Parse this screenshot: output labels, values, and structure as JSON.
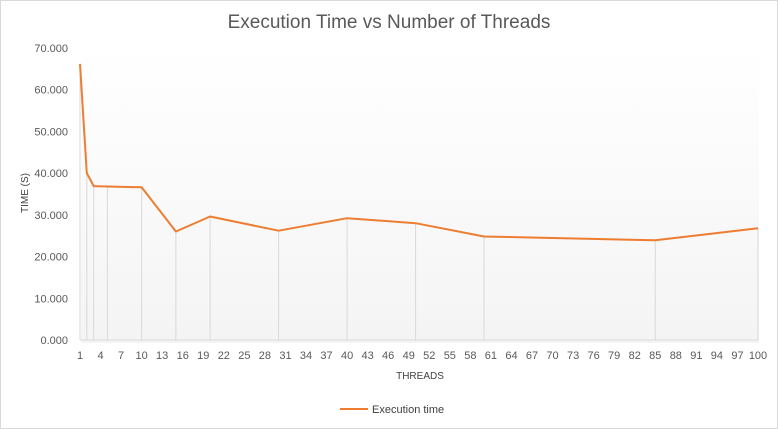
{
  "chart_data": {
    "type": "line",
    "title": "Execution Time vs Number of Threads",
    "xlabel": "THREADS",
    "ylabel": "TIME (S)",
    "ylim": [
      0,
      70
    ],
    "yticks": [
      "0.000",
      "10.000",
      "20.000",
      "30.000",
      "40.000",
      "50.000",
      "60.000",
      "70.000"
    ],
    "xticks": [
      "1",
      "4",
      "7",
      "10",
      "13",
      "16",
      "19",
      "22",
      "25",
      "28",
      "31",
      "34",
      "37",
      "40",
      "43",
      "46",
      "49",
      "52",
      "55",
      "58",
      "61",
      "64",
      "67",
      "70",
      "73",
      "76",
      "79",
      "82",
      "85",
      "88",
      "91",
      "94",
      "97",
      "100"
    ],
    "xlim": [
      1,
      100
    ],
    "series": [
      {
        "name": "Execution time",
        "color": "#ed7d31",
        "x": [
          1,
          2,
          3,
          5,
          10,
          15,
          20,
          30,
          40,
          50,
          60,
          85,
          100
        ],
        "values": [
          66.2,
          40.0,
          36.9,
          36.8,
          36.6,
          26.0,
          29.6,
          26.2,
          29.2,
          28.0,
          24.8,
          23.9,
          26.8
        ]
      }
    ],
    "legend_position": "bottom",
    "grid": false
  }
}
